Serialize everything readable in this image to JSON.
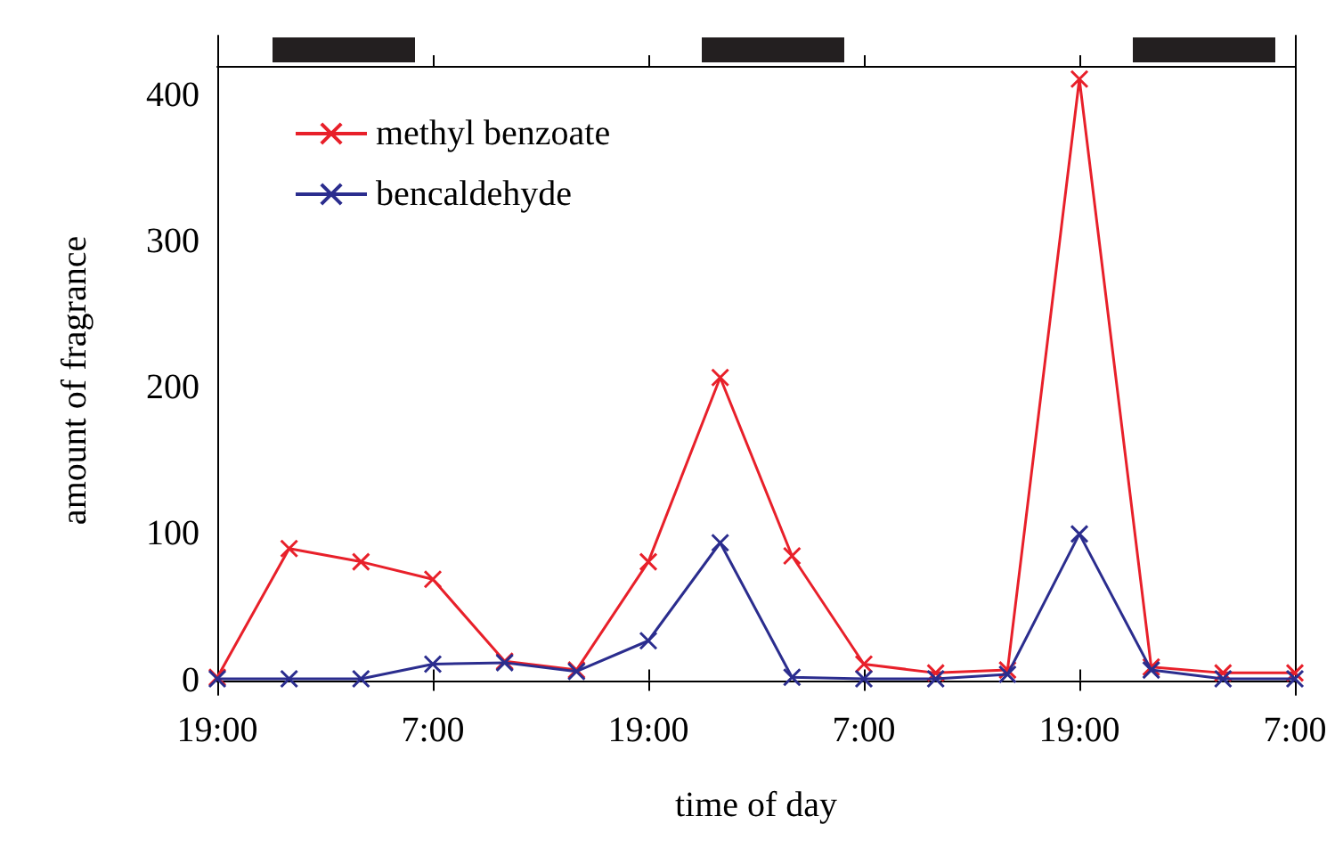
{
  "chart_data": {
    "type": "line",
    "xlabel": "time of day",
    "ylabel": "amount of fragrance",
    "categories": [
      "19:00",
      null,
      null,
      "7:00",
      null,
      null,
      "19:00",
      null,
      null,
      "7:00",
      null,
      null,
      "19:00",
      null,
      null,
      "7:00"
    ],
    "series": [
      {
        "name": "methyl benzoate",
        "color": "#e8202a",
        "values": [
          2,
          90,
          81,
          69,
          13,
          7,
          81,
          207,
          85,
          11,
          5,
          7,
          411,
          9,
          5,
          5
        ]
      },
      {
        "name": "bencaldehyde",
        "color": "#2b2d8e",
        "values": [
          1,
          1,
          1,
          11,
          12,
          6,
          27,
          94,
          2,
          1,
          1,
          4,
          100,
          7,
          1,
          1
        ]
      }
    ],
    "ylim": [
      -10,
      420
    ],
    "yticks": [
      0,
      100,
      200,
      300,
      400
    ],
    "legend": "top left",
    "marker": "cross",
    "line_style": "solid",
    "grid": false
  }
}
